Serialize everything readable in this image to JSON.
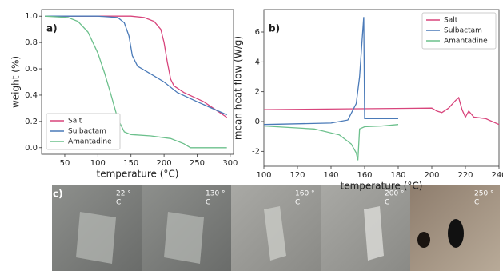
{
  "chart_data": [
    {
      "type": "line",
      "label": "a)",
      "xlabel": "temperature (°C)",
      "ylabel": "weight (%)",
      "xlim": [
        15,
        305
      ],
      "xticks": [
        50,
        100,
        150,
        200,
        250,
        300
      ],
      "ylim": [
        -0.05,
        1.05
      ],
      "yticks": [
        {
          "value": 0,
          "label": "0.0"
        },
        0.2,
        0.4,
        0.6,
        0.8,
        {
          "value": 1,
          "label": "1.0"
        }
      ],
      "legend": "lower left",
      "series": [
        {
          "name": "Salt",
          "color": "#d8457c",
          "x": [
            20,
            100,
            150,
            170,
            185,
            195,
            200,
            205,
            210,
            215,
            230,
            260,
            295
          ],
          "values": [
            1.0,
            1.0,
            1.0,
            0.99,
            0.96,
            0.9,
            0.8,
            0.65,
            0.52,
            0.47,
            0.42,
            0.35,
            0.23
          ]
        },
        {
          "name": "Sulbactam",
          "color": "#4a7ab8",
          "x": [
            20,
            100,
            130,
            140,
            147,
            152,
            160,
            180,
            200,
            220,
            250,
            295
          ],
          "values": [
            1.0,
            1.0,
            0.99,
            0.95,
            0.85,
            0.7,
            0.62,
            0.56,
            0.5,
            0.42,
            0.35,
            0.25
          ]
        },
        {
          "name": "Amantadine",
          "color": "#6cc08c",
          "x": [
            20,
            55,
            70,
            85,
            100,
            110,
            120,
            130,
            140,
            150,
            180,
            210,
            230,
            240,
            295
          ],
          "values": [
            1.0,
            0.99,
            0.96,
            0.88,
            0.72,
            0.57,
            0.4,
            0.22,
            0.12,
            0.1,
            0.09,
            0.07,
            0.03,
            0.0,
            0.0
          ]
        }
      ]
    },
    {
      "type": "line",
      "label": "b)",
      "xlabel": "temperature (°C)",
      "ylabel": "mean heat flow (W/g)",
      "xlim": [
        100,
        240
      ],
      "xticks": [
        100,
        120,
        140,
        160,
        180,
        200,
        220,
        240
      ],
      "ylim": [
        -3,
        7.5
      ],
      "yticks": [
        -2,
        0,
        2,
        4,
        6
      ],
      "legend": "upper right",
      "series": [
        {
          "name": "Salt",
          "color": "#d8457c",
          "x": [
            100,
            150,
            200,
            203,
            206,
            210,
            214,
            216,
            218,
            220,
            222,
            225,
            232,
            240
          ],
          "values": [
            0.8,
            0.85,
            0.9,
            0.7,
            0.6,
            0.9,
            1.4,
            1.6,
            0.8,
            0.3,
            0.7,
            0.3,
            0.2,
            -0.2
          ]
        },
        {
          "name": "Sulbactam",
          "color": "#4a7ab8",
          "x": [
            100,
            140,
            150,
            155,
            157,
            158.5,
            159.5,
            160,
            170,
            180
          ],
          "values": [
            -0.2,
            -0.1,
            0.1,
            1.2,
            3,
            5.5,
            7,
            0.2,
            0.2,
            0.2
          ]
        },
        {
          "name": "Amantadine",
          "color": "#6cc08c",
          "x": [
            100,
            130,
            145,
            152,
            155,
            156,
            157,
            160,
            170,
            180
          ],
          "values": [
            -0.3,
            -0.5,
            -0.9,
            -1.5,
            -2.1,
            -2.6,
            -0.5,
            -0.35,
            -0.3,
            -0.2
          ]
        }
      ]
    }
  ],
  "figure_c": {
    "label": "c)",
    "panels": [
      {
        "temperature": "22 °",
        "unit": "C"
      },
      {
        "temperature": "130 °",
        "unit": "C"
      },
      {
        "temperature": "160 °",
        "unit": "C"
      },
      {
        "temperature": "200 °",
        "unit": "C"
      },
      {
        "temperature": "250 °",
        "unit": "C"
      }
    ]
  }
}
